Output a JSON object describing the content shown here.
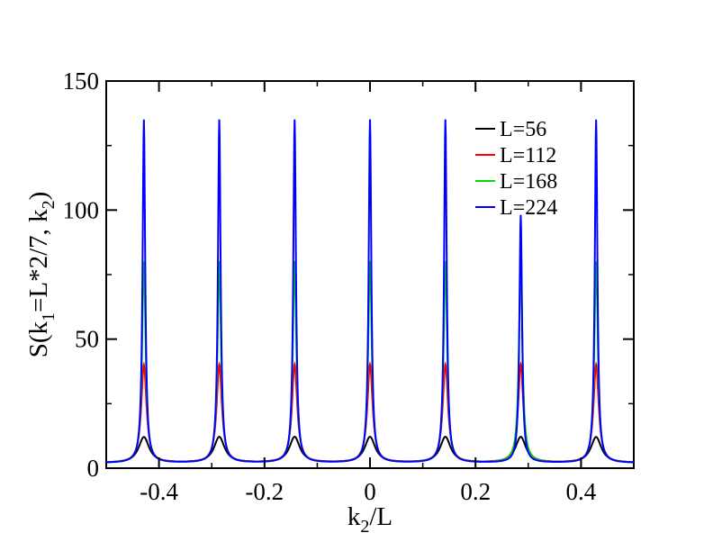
{
  "chart_data": {
    "type": "line",
    "title": "",
    "xlabel": {
      "main": "k",
      "sub": "2",
      "rest": "/L"
    },
    "ylabel": {
      "p1": "S(k",
      "s1": "1",
      "p2": "=L*2/7, k",
      "s2": "2",
      "p3": ")"
    },
    "xlim": [
      -0.5,
      0.5
    ],
    "ylim": [
      0,
      150
    ],
    "x_ticks": [
      -0.4,
      -0.2,
      0,
      0.2,
      0.4
    ],
    "x_tick_labels": [
      "-0.4",
      "-0.2",
      "0",
      "0.2",
      "0.4"
    ],
    "y_ticks": [
      0,
      50,
      100,
      150
    ],
    "y_tick_labels": [
      "0",
      "50",
      "100",
      "150"
    ],
    "grid": false,
    "legend_position": "top-right",
    "peak_positions": [
      -0.4286,
      -0.2857,
      -0.1429,
      0,
      0.1429,
      0.2857,
      0.4286
    ],
    "baseline_value": 2,
    "series": [
      {
        "name": "L=56",
        "color": "#000000",
        "peak_values": [
          12,
          12,
          12,
          12,
          12,
          12,
          12
        ]
      },
      {
        "name": "L=112",
        "color": "#ff0000",
        "peak_values": [
          40,
          40,
          40,
          40,
          40,
          40,
          40
        ]
      },
      {
        "name": "L=168",
        "color": "#00dd00",
        "peak_values": [
          80,
          80,
          80,
          80,
          80,
          80,
          80
        ]
      },
      {
        "name": "L=224",
        "color": "#0000ff",
        "peak_values": [
          135,
          135,
          135,
          135,
          135,
          98,
          135
        ]
      }
    ]
  }
}
